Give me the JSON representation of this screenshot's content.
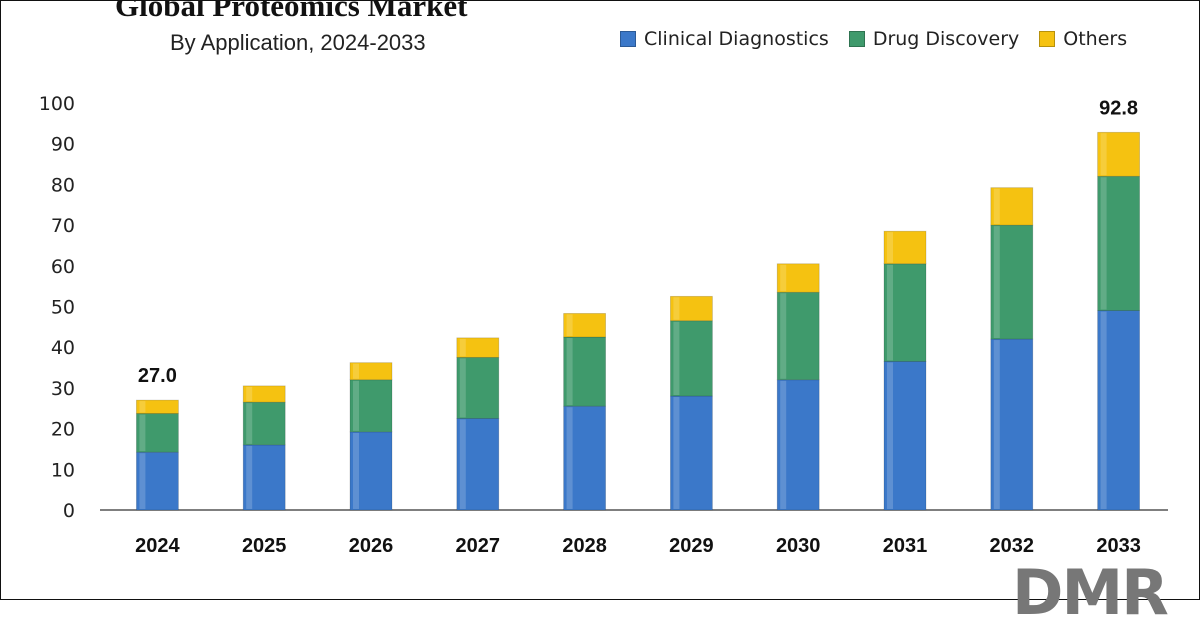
{
  "title": "Global Proteomics Market",
  "subtitle": "By Application, 2024-2033",
  "logo_text": "DMR",
  "colors": {
    "clinical": "#3b78c9",
    "drug": "#3f9a6c",
    "others": "#f5c211",
    "axis": "#333333"
  },
  "chart_data": {
    "type": "bar",
    "stacked": true,
    "categories": [
      "2024",
      "2025",
      "2026",
      "2027",
      "2028",
      "2029",
      "2030",
      "2031",
      "2032",
      "2033"
    ],
    "series": [
      {
        "name": "Clinical Diagnostics",
        "color": "#3b78c9",
        "values": [
          14.2,
          16.0,
          19.2,
          22.5,
          25.5,
          28.0,
          32.0,
          36.5,
          42.0,
          49.0
        ]
      },
      {
        "name": "Drug Discovery",
        "color": "#3f9a6c",
        "values": [
          9.5,
          10.5,
          12.8,
          15.0,
          17.0,
          18.5,
          21.5,
          24.0,
          28.0,
          33.0
        ]
      },
      {
        "name": "Others",
        "color": "#f5c211",
        "values": [
          3.3,
          4.0,
          4.2,
          4.8,
          5.8,
          6.0,
          7.0,
          8.0,
          9.2,
          10.8
        ]
      }
    ],
    "ylim": [
      0,
      100
    ],
    "yticks": [
      "0",
      "10",
      "20",
      "30",
      "40",
      "50",
      "60",
      "70",
      "80",
      "90",
      "100"
    ],
    "data_labels": [
      {
        "category": "2024",
        "text": "27.0"
      },
      {
        "category": "2033",
        "text": "92.8"
      }
    ],
    "legend_position": "top-right",
    "grid": false,
    "xlabel": "",
    "ylabel": ""
  }
}
